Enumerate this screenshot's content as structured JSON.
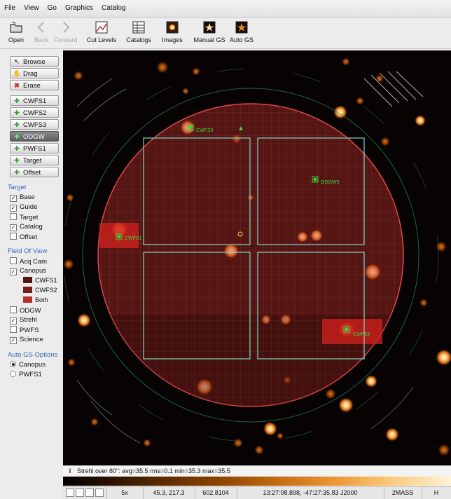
{
  "menubar": {
    "items": [
      "File",
      "View",
      "Go",
      "Graphics",
      "Catalog"
    ]
  },
  "toolbar": {
    "buttons": [
      {
        "label": "Open",
        "icon": "folder-icon",
        "enabled": true
      },
      {
        "label": "Back",
        "icon": "back-arrow-icon",
        "enabled": false
      },
      {
        "label": "Forward",
        "icon": "forward-arrow-icon",
        "enabled": false
      },
      {
        "label": "Cut Levels",
        "icon": "cut-levels-icon",
        "enabled": true
      },
      {
        "label": "Catalogs",
        "icon": "table-icon",
        "enabled": true
      },
      {
        "label": "Images",
        "icon": "image-icon",
        "enabled": true
      },
      {
        "label": "Manual GS",
        "icon": "manual-star-icon",
        "enabled": true
      },
      {
        "label": "Auto GS",
        "icon": "auto-star-icon",
        "enabled": true
      }
    ]
  },
  "tools": {
    "mode": [
      {
        "label": "Browse",
        "icon": "pointer-icon"
      },
      {
        "label": "Drag",
        "icon": "hand-icon"
      },
      {
        "label": "Erase",
        "icon": "erase-x-icon"
      }
    ],
    "guide_probes": [
      {
        "label": "CWFS1",
        "active": false
      },
      {
        "label": "CWFS2",
        "active": false
      },
      {
        "label": "CWFS3",
        "active": false
      },
      {
        "label": "ODGW",
        "active": true
      },
      {
        "label": "PWFS1",
        "active": false
      },
      {
        "label": "Target",
        "active": false
      },
      {
        "label": "Offset",
        "active": false
      }
    ]
  },
  "target_section": {
    "title": "Target",
    "items": [
      {
        "label": "Base",
        "checked": true
      },
      {
        "label": "Guide",
        "checked": true
      },
      {
        "label": "Target",
        "checked": false
      },
      {
        "label": "Catalog",
        "checked": true
      },
      {
        "label": "Offset",
        "checked": false
      }
    ]
  },
  "fov_section": {
    "title": "Field Of View",
    "items_top": [
      {
        "label": "Acq Cam",
        "checked": false
      },
      {
        "label": "Canopus",
        "checked": true
      }
    ],
    "canopus_swatches": [
      {
        "label": "CWFS1",
        "color": "#5a1410"
      },
      {
        "label": "CWFS2",
        "color": "#7a1c18"
      },
      {
        "label": "Both",
        "color": "#b8302a"
      }
    ],
    "items_bottom": [
      {
        "label": "ODGW",
        "checked": false
      },
      {
        "label": "Strehl",
        "checked": true
      },
      {
        "label": "PWFS",
        "checked": false
      },
      {
        "label": "Science",
        "checked": true
      }
    ]
  },
  "autogs_section": {
    "title": "Auto GS Options",
    "options": [
      {
        "label": "Canopus",
        "selected": true
      },
      {
        "label": "PWFS1",
        "selected": false
      }
    ]
  },
  "image": {
    "labels": [
      "CWFS3",
      "ODGW3",
      "CWFS1",
      "CWFS2"
    ],
    "colors": {
      "strehl_fill": "#c2302a",
      "strehl_edge": "#e0464a",
      "odgw_box": "#7fd6c8",
      "guide_star": "#3cd63c"
    }
  },
  "status": {
    "text": "Strehl over 80\": avg=35.5  rms=0.1  min=35.3  max=35.5"
  },
  "bottombar": {
    "zoom": "5x",
    "pixel": "45.3, 217.3",
    "value": "602.8104",
    "coords": "13:27:08.898, -47:27:35.83 J2000",
    "survey": "2MASS",
    "band": "H"
  }
}
